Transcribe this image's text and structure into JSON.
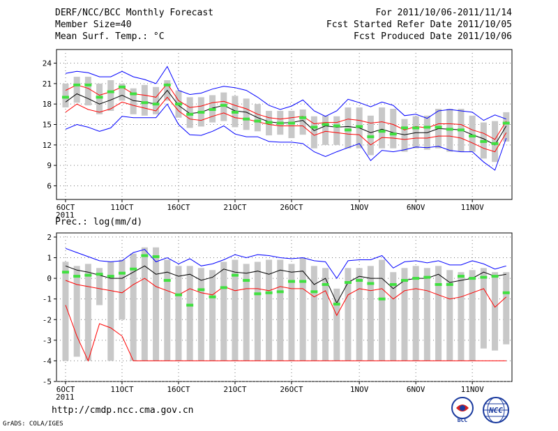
{
  "header": {
    "title": "DERF/NCC/BCC Monthly Forecast",
    "member_size": "Member Size=40",
    "variable": "Mean Surf. Temp.: °C",
    "period": "For 2011/10/06-2011/11/14",
    "fcst_started": "Fcst Started Refer Date 2011/10/05",
    "fcst_produced": "Fcst Produced Date 2011/10/06"
  },
  "prec_label": "Prec.: log(mm/d)",
  "footer": {
    "url": "http://cmdp.ncc.cma.gov.cn",
    "grads": "GrADS: COLA/IGES"
  },
  "logos": {
    "bcc": "BCC",
    "ncc": "NCC"
  },
  "colors": {
    "max_min": "#0000ff",
    "spread": "#ff0000",
    "mean": "#000000",
    "bar": "#c8c8c8",
    "member": "#40e040"
  },
  "chart_data": [
    {
      "type": "line",
      "name": "temperature",
      "title": "Mean Surf. Temp.: °C",
      "ylim": [
        4,
        26
      ],
      "yticks": [
        6,
        9,
        12,
        15,
        18,
        21,
        24
      ],
      "xlim": [
        0,
        40
      ],
      "xticks": [
        {
          "day": 1,
          "label": "6OCT"
        },
        {
          "day": 6,
          "label": "11OCT"
        },
        {
          "day": 11,
          "label": "16OCT"
        },
        {
          "day": 16,
          "label": "21OCT"
        },
        {
          "day": 21,
          "label": "26OCT"
        },
        {
          "day": 27,
          "label": "1NOV"
        },
        {
          "day": 32,
          "label": "6NOV"
        },
        {
          "day": 37,
          "label": "11NOV"
        }
      ],
      "year_label": "2011",
      "days": [
        1,
        2,
        3,
        4,
        5,
        6,
        7,
        8,
        9,
        10,
        11,
        12,
        13,
        14,
        15,
        16,
        17,
        18,
        19,
        20,
        21,
        22,
        23,
        24,
        25,
        26,
        27,
        28,
        29,
        30,
        31,
        32,
        33,
        34,
        35,
        36,
        37,
        38,
        39,
        40
      ],
      "series": [
        {
          "name": "max",
          "color": "#0000ff",
          "values": [
            22.5,
            22.8,
            22.6,
            22.0,
            22.0,
            22.8,
            22.0,
            21.6,
            21.0,
            23.5,
            20.0,
            19.4,
            19.6,
            20.2,
            20.6,
            20.4,
            20.0,
            19.0,
            17.8,
            17.2,
            17.7,
            18.6,
            17.0,
            16.2,
            17.0,
            18.7,
            18.2,
            17.6,
            18.3,
            17.8,
            16.3,
            16.5,
            15.9,
            17.0,
            17.2,
            17.0,
            16.8,
            15.6,
            16.4,
            15.8
          ]
        },
        {
          "name": "spread_upper",
          "color": "#ff0000",
          "values": [
            20.0,
            20.8,
            20.3,
            19.3,
            19.8,
            20.5,
            19.5,
            19.3,
            19.0,
            21.0,
            18.5,
            17.5,
            17.7,
            18.2,
            18.4,
            17.8,
            17.3,
            16.5,
            16.0,
            15.8,
            16.0,
            16.2,
            15.1,
            15.3,
            15.3,
            15.8,
            15.6,
            15.2,
            15.4,
            15.0,
            14.2,
            14.7,
            14.5,
            15.1,
            15.1,
            15.0,
            14.2,
            13.7,
            12.8,
            15.5
          ]
        },
        {
          "name": "mean",
          "color": "#000000",
          "values": [
            18.3,
            19.5,
            18.8,
            18.0,
            18.6,
            19.3,
            18.5,
            18.3,
            18.0,
            20.0,
            17.8,
            16.6,
            16.8,
            17.4,
            17.8,
            17.0,
            16.8,
            16.0,
            15.4,
            15.2,
            15.3,
            15.6,
            14.1,
            14.8,
            14.6,
            14.7,
            14.5,
            13.8,
            14.3,
            13.8,
            13.5,
            13.8,
            13.8,
            14.4,
            14.3,
            14.2,
            13.5,
            12.9,
            12.0,
            14.8
          ]
        },
        {
          "name": "spread_lower",
          "color": "#ff0000",
          "values": [
            16.8,
            18.0,
            17.2,
            16.8,
            17.3,
            18.3,
            17.8,
            17.4,
            17.0,
            19.0,
            17.0,
            15.8,
            15.6,
            16.2,
            16.7,
            16.0,
            15.8,
            15.4,
            15.0,
            14.8,
            14.8,
            14.8,
            13.4,
            14.0,
            13.8,
            13.6,
            13.5,
            12.0,
            13.1,
            13.0,
            12.8,
            13.0,
            13.0,
            13.3,
            13.3,
            13.0,
            12.3,
            11.5,
            11.0,
            13.8
          ]
        },
        {
          "name": "min",
          "color": "#0000ff",
          "values": [
            14.3,
            15.0,
            14.6,
            14.0,
            14.5,
            16.2,
            16.0,
            16.0,
            16.0,
            18.0,
            15.0,
            13.5,
            13.4,
            14.0,
            14.8,
            13.6,
            13.2,
            13.2,
            12.5,
            12.4,
            12.4,
            12.2,
            11.0,
            10.3,
            11.0,
            11.6,
            12.2,
            9.7,
            11.2,
            11.0,
            11.3,
            11.7,
            11.6,
            11.8,
            11.2,
            11.0,
            11.0,
            9.5,
            8.3,
            13.0
          ]
        }
      ],
      "member_mark": [
        19.0,
        20.8,
        20.8,
        19.0,
        19.8,
        20.5,
        19.5,
        18.2,
        18.0,
        20.8,
        18.0,
        16.5,
        16.8,
        17.2,
        17.8,
        16.8,
        15.8,
        15.5,
        15.3,
        15.2,
        15.2,
        16.0,
        14.6,
        15.0,
        14.8,
        14.2,
        14.7,
        13.2,
        14.0,
        13.6,
        14.5,
        14.5,
        14.6,
        14.6,
        14.3,
        14.2,
        13.3,
        12.5,
        12.2,
        15.2
      ],
      "bar_top": [
        21.0,
        22.0,
        22.0,
        21.0,
        21.5,
        21.0,
        20.3,
        20.8,
        20.5,
        21.5,
        20.0,
        19.0,
        19.0,
        19.3,
        19.7,
        19.2,
        18.8,
        18.0,
        17.0,
        17.0,
        17.0,
        17.2,
        16.2,
        16.3,
        16.2,
        17.5,
        17.5,
        16.3,
        17.5,
        17.3,
        15.8,
        16.2,
        16.3,
        17.3,
        17.3,
        17.3,
        16.3,
        15.3,
        15.5,
        16.8
      ],
      "bar_bottom": [
        17.5,
        18.2,
        17.8,
        16.5,
        17.0,
        18.5,
        16.5,
        16.3,
        16.5,
        18.5,
        16.0,
        14.5,
        14.7,
        15.3,
        15.5,
        14.6,
        14.2,
        14.0,
        13.4,
        13.5,
        13.0,
        13.5,
        11.5,
        12.0,
        12.0,
        11.5,
        11.5,
        10.5,
        11.5,
        11.5,
        11.0,
        11.5,
        11.3,
        11.5,
        11.0,
        11.0,
        11.0,
        10.0,
        9.5,
        12.5
      ]
    },
    {
      "type": "line",
      "name": "precipitation",
      "title": "Prec.: log(mm/d)",
      "ylim": [
        -5,
        2.2
      ],
      "yticks": [
        -5,
        -4,
        -3,
        -2,
        -1,
        0,
        1,
        2
      ],
      "xlim": [
        0,
        40
      ],
      "xticks": [
        {
          "day": 1,
          "label": "6OCT"
        },
        {
          "day": 6,
          "label": "11OCT"
        },
        {
          "day": 11,
          "label": "16OCT"
        },
        {
          "day": 16,
          "label": "21OCT"
        },
        {
          "day": 21,
          "label": "26OCT"
        },
        {
          "day": 27,
          "label": "1NOV"
        },
        {
          "day": 32,
          "label": "6NOV"
        },
        {
          "day": 37,
          "label": "11NOV"
        }
      ],
      "year_label": "2011",
      "days": [
        1,
        2,
        3,
        4,
        5,
        6,
        7,
        8,
        9,
        10,
        11,
        12,
        13,
        14,
        15,
        16,
        17,
        18,
        19,
        20,
        21,
        22,
        23,
        24,
        25,
        26,
        27,
        28,
        29,
        30,
        31,
        32,
        33,
        34,
        35,
        36,
        37,
        38,
        39,
        40
      ],
      "series": [
        {
          "name": "max",
          "color": "#0000ff",
          "values": [
            1.45,
            1.25,
            1.05,
            0.85,
            0.8,
            0.85,
            1.25,
            1.4,
            0.8,
            1.0,
            0.7,
            0.95,
            0.6,
            0.7,
            0.9,
            1.15,
            1.0,
            1.15,
            1.1,
            1.0,
            0.95,
            1.0,
            0.85,
            0.8,
            0.0,
            0.85,
            0.9,
            0.9,
            1.1,
            0.5,
            0.8,
            0.85,
            0.75,
            0.85,
            0.65,
            0.65,
            0.85,
            0.7,
            0.45,
            0.6
          ]
        },
        {
          "name": "mean",
          "color": "#000000",
          "values": [
            0.6,
            0.4,
            0.3,
            0.15,
            0.0,
            0.0,
            0.3,
            0.6,
            0.2,
            0.3,
            0.1,
            0.2,
            -0.1,
            0.05,
            0.45,
            0.3,
            0.25,
            0.35,
            0.2,
            0.4,
            0.3,
            0.35,
            -0.3,
            0.0,
            -1.2,
            -0.2,
            0.1,
            0.0,
            0.0,
            -0.5,
            -0.1,
            0.0,
            0.0,
            0.2,
            -0.2,
            -0.1,
            0.0,
            0.3,
            0.1,
            0.2
          ]
        },
        {
          "name": "min",
          "color": "#ff0000",
          "values": [
            -1.3,
            -2.8,
            -4.0,
            -2.2,
            -2.4,
            -2.8,
            -4.0,
            -4.0,
            -4.0,
            -4.0,
            -4.0,
            -4.0,
            -4.0,
            -4.0,
            -4.0,
            -4.0,
            -4.0,
            -4.0,
            -4.0,
            -4.0,
            -4.0,
            -4.0,
            -4.0,
            -4.0,
            -4.0,
            -4.0,
            -4.0,
            -4.0,
            -4.0,
            -4.0,
            -4.0,
            -4.0,
            -4.0,
            -4.0,
            -4.0,
            -4.0,
            -4.0,
            -4.0,
            -4.0,
            -4.0
          ]
        },
        {
          "name": "lower_spread",
          "color": "#ff0000",
          "values": [
            -0.1,
            -0.3,
            -0.4,
            -0.5,
            -0.6,
            -0.7,
            -0.3,
            0.0,
            -0.4,
            -0.6,
            -0.8,
            -0.5,
            -0.7,
            -0.8,
            -0.4,
            -0.6,
            -0.5,
            -0.5,
            -0.6,
            -0.4,
            -0.5,
            -0.5,
            -0.9,
            -0.6,
            -1.8,
            -0.8,
            -0.5,
            -0.6,
            -0.5,
            -1.0,
            -0.6,
            -0.5,
            -0.6,
            -0.8,
            -1.0,
            -0.9,
            -0.7,
            -0.5,
            -1.4,
            -0.9
          ]
        }
      ],
      "member_mark": [
        0.3,
        0.1,
        0.15,
        0.2,
        0.1,
        0.25,
        0.45,
        1.1,
        1.05,
        -0.1,
        -0.8,
        -1.3,
        -0.55,
        -0.9,
        -0.45,
        0.15,
        -0.1,
        -0.75,
        -0.7,
        -0.65,
        -0.15,
        -0.15,
        -0.65,
        -0.3,
        -1.25,
        -0.2,
        -0.1,
        -0.25,
        -1.0,
        -0.3,
        -0.1,
        0.0,
        0.05,
        -0.3,
        -0.3,
        0.1,
        0.0,
        0.05,
        0.1,
        -0.7
      ],
      "bar_top": [
        0.8,
        0.6,
        0.7,
        0.5,
        0.8,
        0.9,
        1.2,
        1.5,
        1.5,
        0.9,
        0.6,
        0.6,
        0.5,
        0.4,
        0.8,
        0.9,
        0.7,
        0.8,
        0.9,
        0.9,
        0.7,
        1.0,
        0.6,
        0.5,
        -0.5,
        0.5,
        0.5,
        0.6,
        0.9,
        0.3,
        0.5,
        0.6,
        0.5,
        0.6,
        0.4,
        0.3,
        0.4,
        0.5,
        0.3,
        0.3
      ],
      "bar_bottom": [
        -4.0,
        -3.8,
        -4.0,
        -1.3,
        -4.0,
        -2.0,
        -4.0,
        -4.0,
        -4.0,
        -4.0,
        -4.0,
        -4.0,
        -4.0,
        -4.0,
        -4.0,
        -4.0,
        -4.0,
        -4.0,
        -4.0,
        -4.0,
        -4.0,
        -4.0,
        -4.0,
        -4.0,
        -4.0,
        -4.0,
        -4.0,
        -4.0,
        -4.0,
        -4.0,
        -4.0,
        -4.0,
        -4.0,
        -4.0,
        -4.0,
        -4.0,
        -4.0,
        -3.4,
        -3.5,
        -3.2
      ]
    }
  ]
}
